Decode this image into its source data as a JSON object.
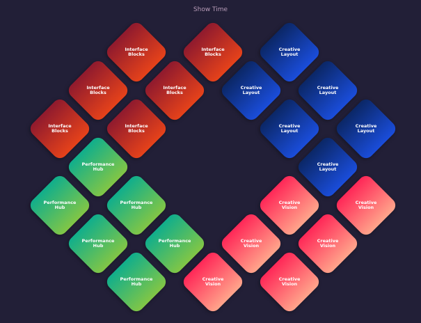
{
  "header": {
    "title": "Show Time"
  },
  "tiles": [
    {
      "lines": [
        "Interface",
        "Blocks"
      ]
    },
    {
      "lines": [
        "Interface",
        "Blocks"
      ]
    },
    {
      "lines": [
        "Interface",
        "Blocks"
      ]
    },
    {
      "lines": [
        "Interface",
        "Blocks"
      ]
    },
    {
      "lines": [
        "Interface",
        "Blocks"
      ]
    },
    {
      "lines": [
        "Interface",
        "Blocks"
      ]
    },
    {
      "lines": [
        "Creative",
        "Layout"
      ]
    },
    {
      "lines": [
        "Creative",
        "Layout"
      ]
    },
    {
      "lines": [
        "Creative",
        "Layout"
      ]
    },
    {
      "lines": [
        "Creative",
        "Layout"
      ]
    },
    {
      "lines": [
        "Creative",
        "Layout"
      ]
    },
    {
      "lines": [
        "Creative",
        "Layout"
      ]
    },
    {
      "lines": [
        "Performance",
        "Hub"
      ]
    },
    {
      "lines": [
        "Performance",
        "Hub"
      ]
    },
    {
      "lines": [
        "Performance",
        "Hub"
      ]
    },
    {
      "lines": [
        "Performance",
        "Hub"
      ]
    },
    {
      "lines": [
        "Performance",
        "Hub"
      ]
    },
    {
      "lines": [
        "Performance",
        "Hub"
      ]
    },
    {
      "lines": [
        "Creative",
        "Vision"
      ]
    },
    {
      "lines": [
        "Creative",
        "Vision"
      ]
    },
    {
      "lines": [
        "Creative",
        "Vision"
      ]
    },
    {
      "lines": [
        "Creative",
        "Vision"
      ]
    },
    {
      "lines": [
        "Creative",
        "Vision"
      ]
    },
    {
      "lines": [
        "Creative",
        "Vision"
      ]
    }
  ]
}
